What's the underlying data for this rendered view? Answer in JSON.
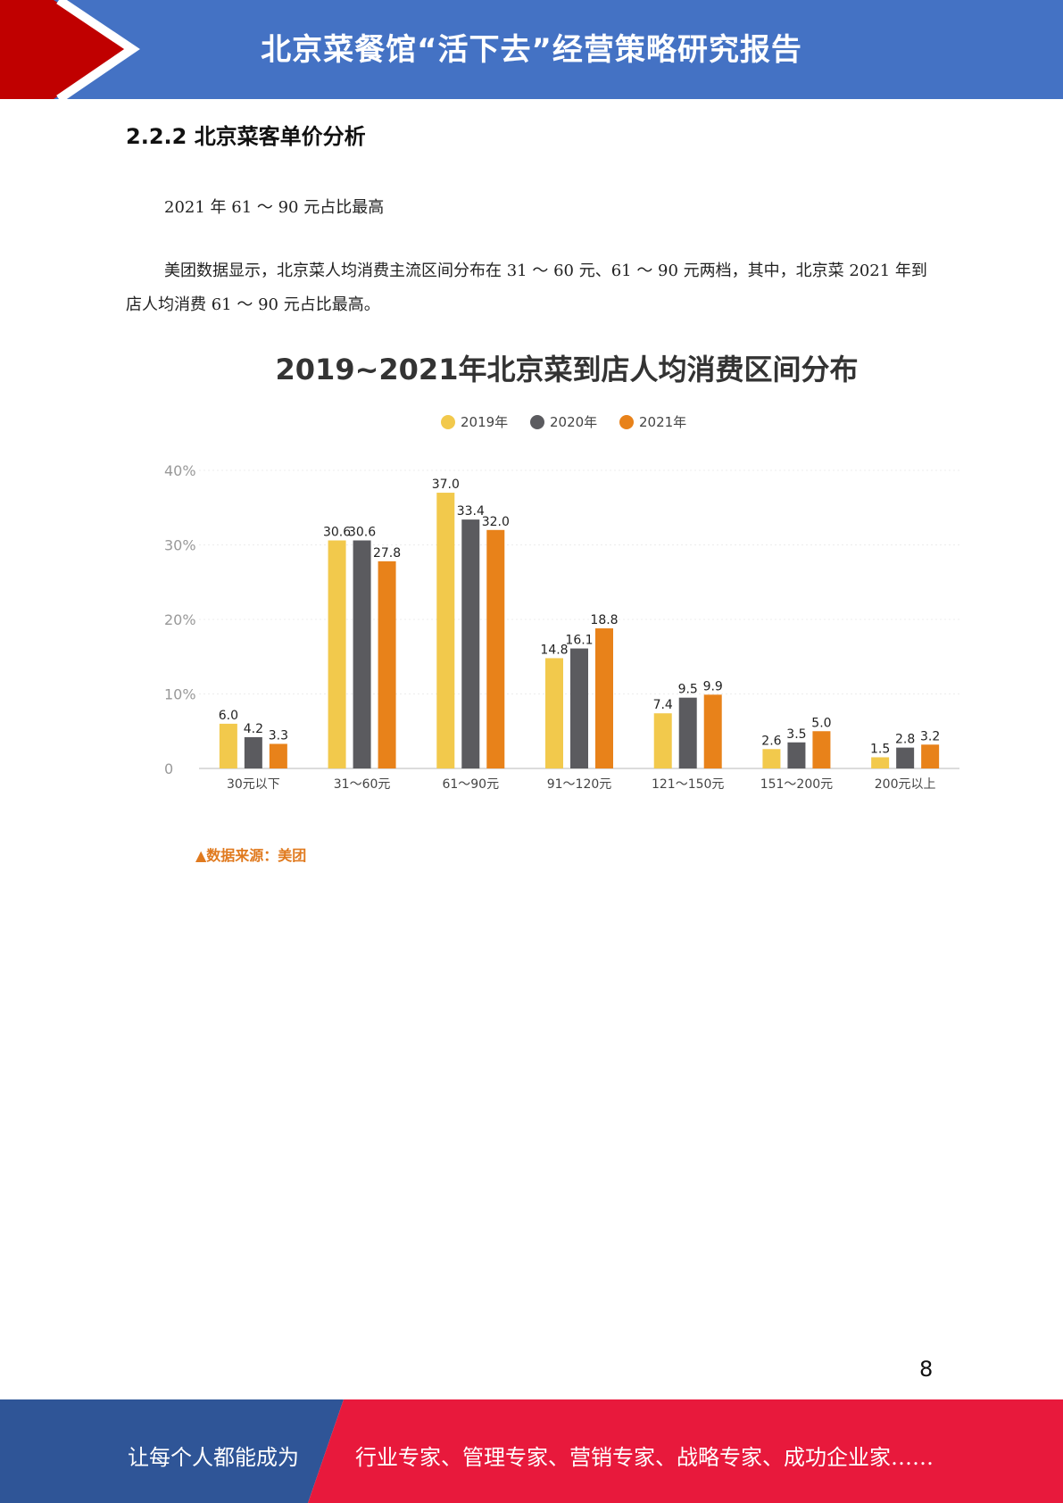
{
  "header": {
    "title": "北京菜餐馆“活下去”经营策略研究报告"
  },
  "section": {
    "heading": "2.2.2 北京菜客单价分析"
  },
  "paragraphs": {
    "p1": "2021 年 61 ～ 90 元占比最高",
    "p2": "美团数据显示，北京菜人均消费主流区间分布在 31 ～ 60 元、61 ～ 90 元两档，其中，北京菜 2021 年到店人均消费 61 ～ 90 元占比最高。"
  },
  "chart_data": {
    "type": "bar",
    "title": "2019~2021年北京菜到店人均消费区间分布",
    "categories": [
      "30元以下",
      "31～60元",
      "61～90元",
      "91～120元",
      "121～150元",
      "151～200元",
      "200元以上"
    ],
    "series": [
      {
        "name": "2019年",
        "color": "#f2c94c",
        "values": [
          6.0,
          30.6,
          37.0,
          14.8,
          7.4,
          2.6,
          1.5
        ]
      },
      {
        "name": "2020年",
        "color": "#5b5b5f",
        "values": [
          4.2,
          30.6,
          33.4,
          16.1,
          9.5,
          3.5,
          2.8
        ]
      },
      {
        "name": "2021年",
        "color": "#e8821a",
        "values": [
          3.3,
          27.8,
          32.0,
          18.8,
          9.9,
          5.0,
          3.2
        ]
      }
    ],
    "yticks": [
      "0",
      "10%",
      "20%",
      "30%",
      "40%"
    ],
    "ylim": [
      0,
      40
    ],
    "legend_position": "top-center",
    "grid": true
  },
  "source_note": "▲数据来源：美团",
  "page_number": "8",
  "footer": {
    "left_text": "让每个人都能成为",
    "right_text": "行业专家、管理专家、营销专家、战略专家、成功企业家……"
  },
  "colors": {
    "header_blue": "#4472c4",
    "accent_red": "#c00000",
    "footer_blue": "#2f5597",
    "footer_red": "#e8193c"
  }
}
